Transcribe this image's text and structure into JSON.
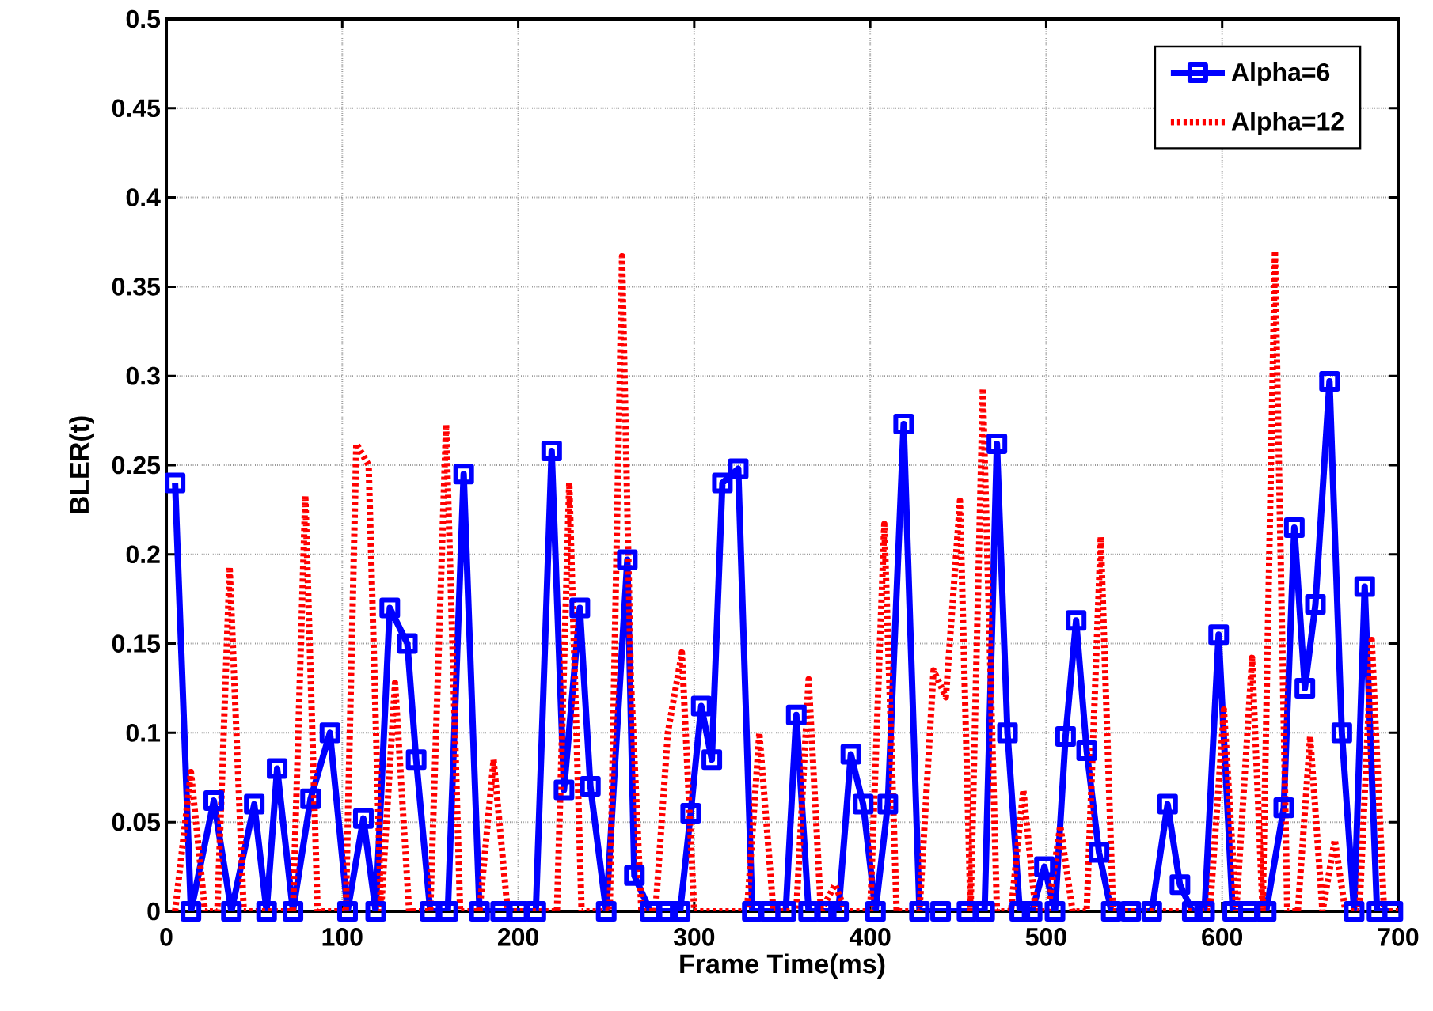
{
  "chart_data": {
    "type": "line",
    "xlabel": "Frame Time(ms)",
    "ylabel": "BLER(t)",
    "xlim": [
      0,
      700
    ],
    "xticks": [
      0,
      100,
      200,
      300,
      400,
      500,
      600,
      700
    ],
    "ylim": [
      0,
      0.5
    ],
    "yticks": [
      0,
      0.05,
      0.1,
      0.15,
      0.2,
      0.25,
      0.3,
      0.35,
      0.4,
      0.45,
      0.5
    ],
    "grid": true,
    "legend": "top right",
    "series": [
      {
        "name": "Alpha=6",
        "color": "#0000ff",
        "marker": "square",
        "line_style": "solid",
        "x": [
          5,
          14,
          27,
          37,
          50,
          57,
          63,
          72,
          82,
          93,
          103,
          112,
          119,
          127,
          137,
          142,
          150,
          160,
          169,
          178,
          190,
          200,
          210,
          219,
          226,
          235,
          241,
          250,
          262,
          266,
          275,
          285,
          292,
          298,
          304,
          310,
          316,
          325,
          333,
          343,
          352,
          358,
          365,
          375,
          382,
          389,
          396,
          403,
          410,
          419,
          428,
          440,
          455,
          465,
          472,
          478,
          485,
          492,
          499,
          505,
          511,
          517,
          523,
          530,
          537,
          548,
          560,
          569,
          576,
          583,
          590,
          598,
          606,
          615,
          625,
          635,
          641,
          647,
          653,
          661,
          668,
          675,
          681,
          688,
          697
        ],
        "values": [
          0.24,
          0,
          0.062,
          0,
          0.06,
          0,
          0.08,
          0,
          0.063,
          0.1,
          0,
          0.052,
          0,
          0.17,
          0.15,
          0.085,
          0,
          0,
          0.245,
          0,
          0,
          0,
          0,
          0.258,
          0.068,
          0.17,
          0.07,
          0,
          0.197,
          0.02,
          0,
          0,
          0,
          0.055,
          0.115,
          0.085,
          0.24,
          0.248,
          0,
          0,
          0,
          0.11,
          0,
          0,
          0,
          0.088,
          0.06,
          0,
          0.06,
          0.273,
          0,
          0,
          0,
          0,
          0.262,
          0.1,
          0,
          0,
          0.025,
          0,
          0.098,
          0.163,
          0.09,
          0.033,
          0,
          0,
          0,
          0.06,
          0.015,
          0,
          0,
          0.155,
          0,
          0,
          0,
          0.058,
          0.215,
          0.125,
          0.172,
          0.297,
          0.1,
          0,
          0.182,
          0,
          0
        ]
      },
      {
        "name": "Alpha=12",
        "color": "#ff0000",
        "marker": "none",
        "line_style": "dotted",
        "x": [
          5,
          14,
          22,
          29,
          36,
          44,
          60,
          72,
          79,
          86,
          95,
          102,
          108,
          115,
          122,
          130,
          138,
          150,
          159,
          167,
          178,
          186,
          194,
          210,
          222,
          229,
          236,
          245,
          252,
          259,
          264,
          270,
          278,
          285,
          293,
          300,
          315,
          330,
          337,
          345,
          358,
          365,
          372,
          380,
          386,
          400,
          408,
          415,
          428,
          436,
          443,
          451,
          457,
          464,
          472,
          480,
          487,
          494,
          501,
          508,
          515,
          523,
          531,
          538,
          550,
          565,
          580,
          593,
          601,
          608,
          617,
          623,
          630,
          637,
          643,
          650,
          657,
          664,
          670,
          678,
          685,
          692,
          700
        ],
        "values": [
          0,
          0.078,
          0,
          0,
          0.193,
          0,
          0,
          0,
          0.233,
          0,
          0,
          0,
          0.262,
          0.25,
          0,
          0.128,
          0,
          0,
          0.273,
          0,
          0,
          0.085,
          0,
          0,
          0,
          0.24,
          0,
          0,
          0,
          0.367,
          0.13,
          0,
          0,
          0.1,
          0.145,
          0,
          0,
          0,
          0.1,
          0,
          0,
          0.13,
          0,
          0.015,
          0,
          0,
          0.217,
          0,
          0,
          0.135,
          0.12,
          0.23,
          0,
          0.293,
          0,
          0,
          0.068,
          0,
          0,
          0.048,
          0,
          0,
          0.21,
          0,
          0,
          0,
          0,
          0,
          0.113,
          0,
          0.142,
          0,
          0.37,
          0,
          0,
          0.098,
          0,
          0.04,
          0,
          0,
          0.152,
          0,
          0
        ]
      }
    ]
  }
}
